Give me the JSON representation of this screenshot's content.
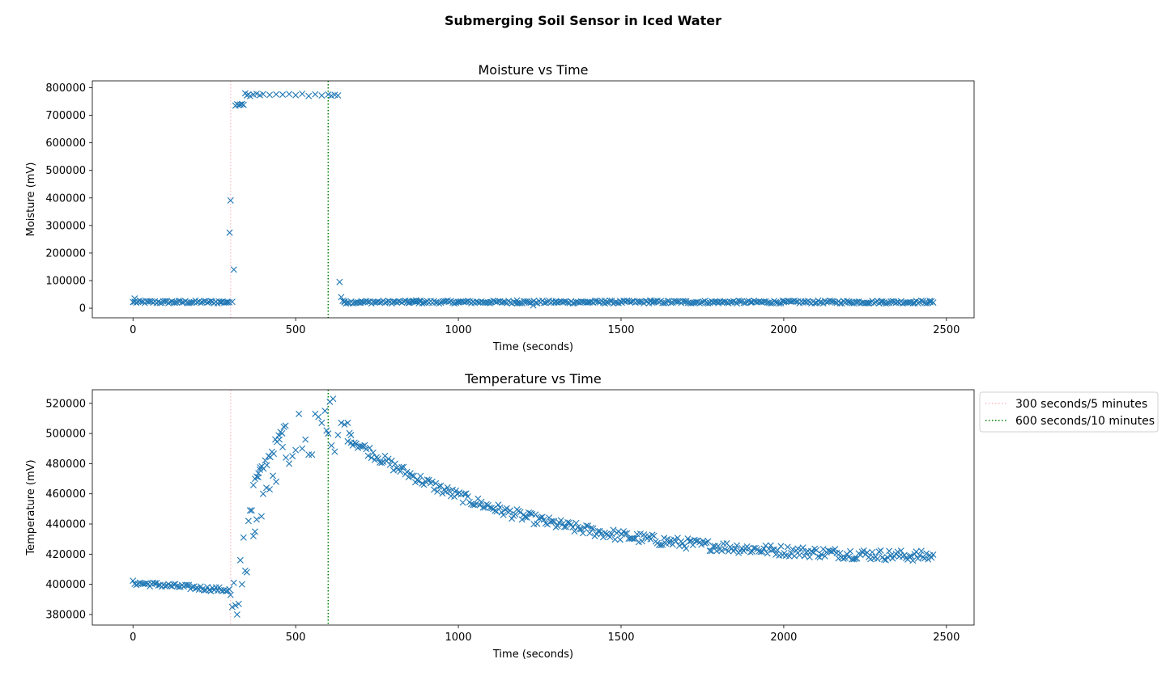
{
  "figure_title": "Submerging Soil Sensor in Iced Water",
  "colors": {
    "marker": "#1f77b4",
    "line_300": "#ffb6c1",
    "line_600": "#008000"
  },
  "legend": {
    "placement": "outside-right-upper",
    "entries": [
      {
        "label": "300 seconds/5 minutes",
        "color": "#ffb6c1",
        "style": "dotted"
      },
      {
        "label": "600 seconds/10 minutes",
        "color": "#008000",
        "style": "dotted"
      }
    ]
  },
  "chart_data": [
    {
      "type": "scatter",
      "marker": "x",
      "title": "Moisture vs Time",
      "xlabel": "Time (seconds)",
      "ylabel": "Moisture (mV)",
      "xlim": [
        -125,
        2585
      ],
      "ylim": [
        -35000,
        825000
      ],
      "xticks": [
        0,
        500,
        1000,
        1500,
        2000,
        2500
      ],
      "yticks": [
        0,
        100000,
        200000,
        300000,
        400000,
        500000,
        600000,
        700000,
        800000
      ],
      "vlines": [
        300,
        600
      ],
      "series": [
        {
          "name": "Moisture",
          "x": [
            0,
            5,
            270,
            290,
            297,
            300,
            305,
            310,
            315,
            320,
            325,
            330,
            335,
            340,
            345,
            350,
            355,
            360,
            370,
            380,
            390,
            400,
            420,
            440,
            460,
            480,
            500,
            520,
            540,
            560,
            580,
            600,
            610,
            620,
            630,
            635,
            640,
            650,
            700,
            800,
            850,
            860,
            870,
            880,
            900,
            1000,
            1100,
            1180,
            1230,
            1300,
            1400,
            1450,
            1500,
            1590,
            1600,
            1700,
            1800,
            1900,
            2000,
            2100,
            2200,
            2260,
            2300,
            2400,
            2450
          ],
          "y": [
            22000,
            35000,
            23000,
            22000,
            274000,
            391000,
            23000,
            140000,
            735000,
            740000,
            737000,
            739000,
            741000,
            738000,
            780000,
            772000,
            776000,
            770000,
            775000,
            778000,
            773000,
            777000,
            774000,
            776000,
            775000,
            777000,
            773000,
            778000,
            770000,
            776000,
            772000,
            775000,
            771000,
            774000,
            772000,
            95000,
            40000,
            25000,
            20000,
            22000,
            20000,
            25000,
            28000,
            26000,
            21000,
            22000,
            22000,
            28000,
            10000,
            22000,
            21000,
            27000,
            22000,
            28000,
            22000,
            24000,
            22000,
            21000,
            22000,
            20000,
            22000,
            18000,
            22000,
            21000,
            22000
          ],
          "dense_band": {
            "x_range": [
              5,
              2460
            ],
            "y_center": 22000,
            "spread": 5000
          }
        }
      ]
    },
    {
      "type": "scatter",
      "marker": "x",
      "title": "Temperature vs Time",
      "xlabel": "Time (seconds)",
      "ylabel": "Temperature (mV)",
      "xlim": [
        -125,
        2585
      ],
      "ylim": [
        373000,
        529000
      ],
      "xticks": [
        0,
        500,
        1000,
        1500,
        2000,
        2500
      ],
      "yticks": [
        380000,
        400000,
        420000,
        440000,
        460000,
        480000,
        500000,
        520000
      ],
      "vlines": [
        300,
        600
      ],
      "series": [
        {
          "name": "Temperature",
          "x": [
            300,
            305,
            310,
            315,
            320,
            325,
            330,
            335,
            340,
            345,
            350,
            355,
            360,
            365,
            370,
            375,
            380,
            385,
            390,
            395,
            400,
            410,
            420,
            430,
            440,
            450,
            460,
            470,
            480,
            490,
            500,
            510,
            520,
            530,
            540,
            550,
            560,
            570,
            580,
            590,
            595,
            600,
            605,
            610,
            615,
            620,
            630,
            640,
            650,
            660,
            670
          ],
          "y": [
            393000,
            385000,
            401000,
            386000,
            380000,
            387000,
            416000,
            400000,
            431000,
            409000,
            408000,
            442000,
            449000,
            449000,
            432000,
            435000,
            443000,
            471000,
            476000,
            445000,
            460000,
            464000,
            463000,
            472000,
            468000,
            496000,
            491000,
            484000,
            480000,
            485000,
            489000,
            513000,
            490000,
            496000,
            486000,
            486000,
            513000,
            511000,
            507000,
            515000,
            502000,
            500000,
            521000,
            492000,
            523000,
            488000,
            499000,
            507000,
            506000,
            507000,
            499000
          ],
          "curves": [
            {
              "label": "baseline",
              "x_range": [
                0,
                300
              ],
              "y_start": 401000,
              "y_end": 396000,
              "spread": 1500
            },
            {
              "label": "rise",
              "x_range": [
                370,
                470
              ],
              "y_start": 466000,
              "y_end": 505000,
              "spread": 4000
            },
            {
              "label": "decay",
              "x_range": [
                660,
                2460
              ],
              "y_start": 498000,
              "y_asymptote": 416000,
              "tau": 520,
              "spread": 3500
            }
          ]
        }
      ]
    }
  ]
}
